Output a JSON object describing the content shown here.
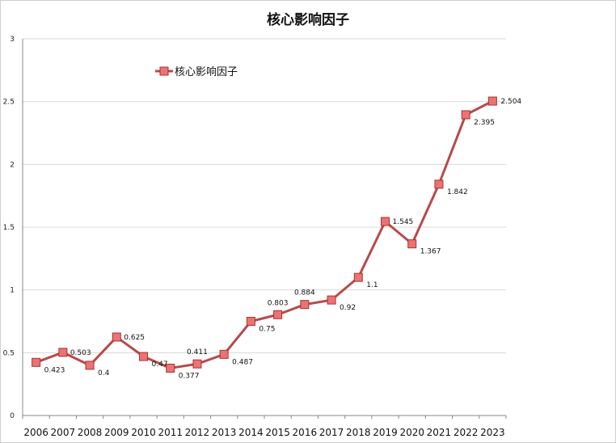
{
  "chart_data": {
    "type": "line",
    "title": "核心影响因子",
    "xlabel": "",
    "ylabel": "",
    "categories": [
      "2006",
      "2007",
      "2008",
      "2009",
      "2010",
      "2011",
      "2012",
      "2013",
      "2014",
      "2015",
      "2016",
      "2017",
      "2018",
      "2019",
      "2020",
      "2021",
      "2022",
      "2023"
    ],
    "series": [
      {
        "name": "核心影响因子",
        "values": [
          0.423,
          0.503,
          0.4,
          0.625,
          0.47,
          0.377,
          0.411,
          0.487,
          0.75,
          0.803,
          0.884,
          0.92,
          1.1,
          1.545,
          1.367,
          1.842,
          2.395,
          2.504
        ],
        "data_labels": [
          "0.423",
          "0.503",
          "0.4",
          "0.625",
          "0.47",
          "0.377",
          "0.411",
          "0.487",
          "0.75",
          "0.803",
          "0.884",
          "0.92",
          "1.1",
          "1.545",
          "1.367",
          "1.842",
          "2.395",
          "2.504"
        ]
      }
    ],
    "ylim": [
      0,
      3
    ],
    "yticks": [
      "0",
      "0.5",
      "1",
      "1.5",
      "2",
      "2.5",
      "3"
    ],
    "grid": true,
    "legend": "top-left",
    "colors": {
      "line": "#b84a4a",
      "marker_fill": "#ec7373",
      "marker_stroke": "#a83232",
      "grid": "#d8d8d8",
      "axis": "#888888"
    }
  }
}
